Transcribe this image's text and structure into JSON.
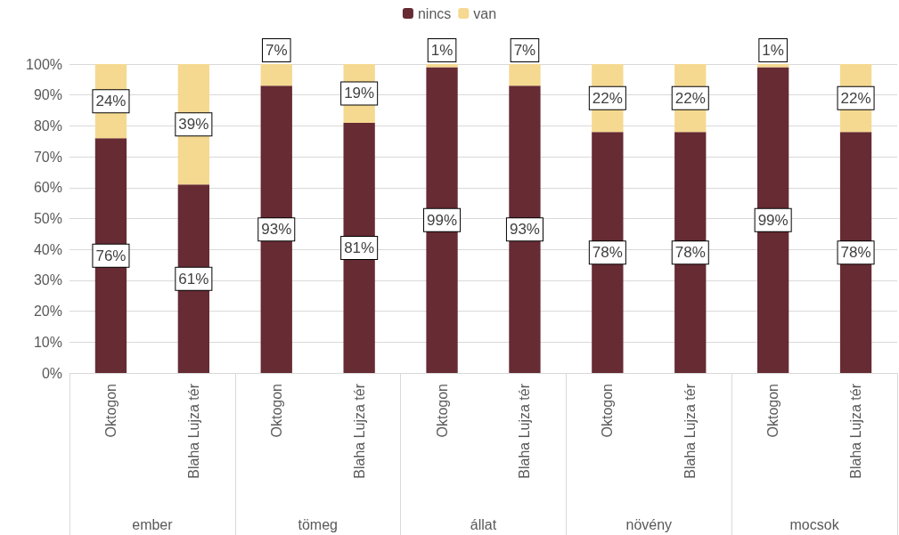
{
  "chart_data": {
    "type": "bar",
    "stacked": true,
    "categories": [
      "Oktogon",
      "Blaha Lujza tér",
      "Oktogon",
      "Blaha Lujza tér",
      "Oktogon",
      "Blaha Lujza tér",
      "Oktogon",
      "Blaha Lujza tér",
      "Oktogon",
      "Blaha Lujza tér"
    ],
    "series": [
      {
        "name": "nincs",
        "color": "#662b33",
        "values": [
          76,
          61,
          93,
          81,
          99,
          93,
          78,
          78,
          99,
          78
        ],
        "value_labels": [
          "76%",
          "61%",
          "93%",
          "81%",
          "99%",
          "93%",
          "78%",
          "78%",
          "99%",
          "78%"
        ]
      },
      {
        "name": "van",
        "color": "#f5d990",
        "values": [
          24,
          39,
          7,
          19,
          1,
          7,
          22,
          22,
          1,
          22
        ],
        "value_labels": [
          "24%",
          "39%",
          "7%",
          "19%",
          "1%",
          "7%",
          "22%",
          "22%",
          "1%",
          "22%"
        ]
      }
    ],
    "annotations": [
      "ember",
      "tömeg",
      "állat",
      "növény",
      "mocsok"
    ],
    "ylim": [
      0,
      100
    ],
    "yticks": [
      {
        "value": 0,
        "label": "0%"
      },
      {
        "value": 10,
        "label": "10%"
      },
      {
        "value": 20,
        "label": "20%"
      },
      {
        "value": 30,
        "label": "30%"
      },
      {
        "value": 40,
        "label": "40%"
      },
      {
        "value": 50,
        "label": "50%"
      },
      {
        "value": 60,
        "label": "60%"
      },
      {
        "value": 70,
        "label": "70%"
      },
      {
        "value": 80,
        "label": "80%"
      },
      {
        "value": 90,
        "label": "90%"
      },
      {
        "value": 100,
        "label": "100%"
      }
    ],
    "grid": "y",
    "legend": "top"
  }
}
